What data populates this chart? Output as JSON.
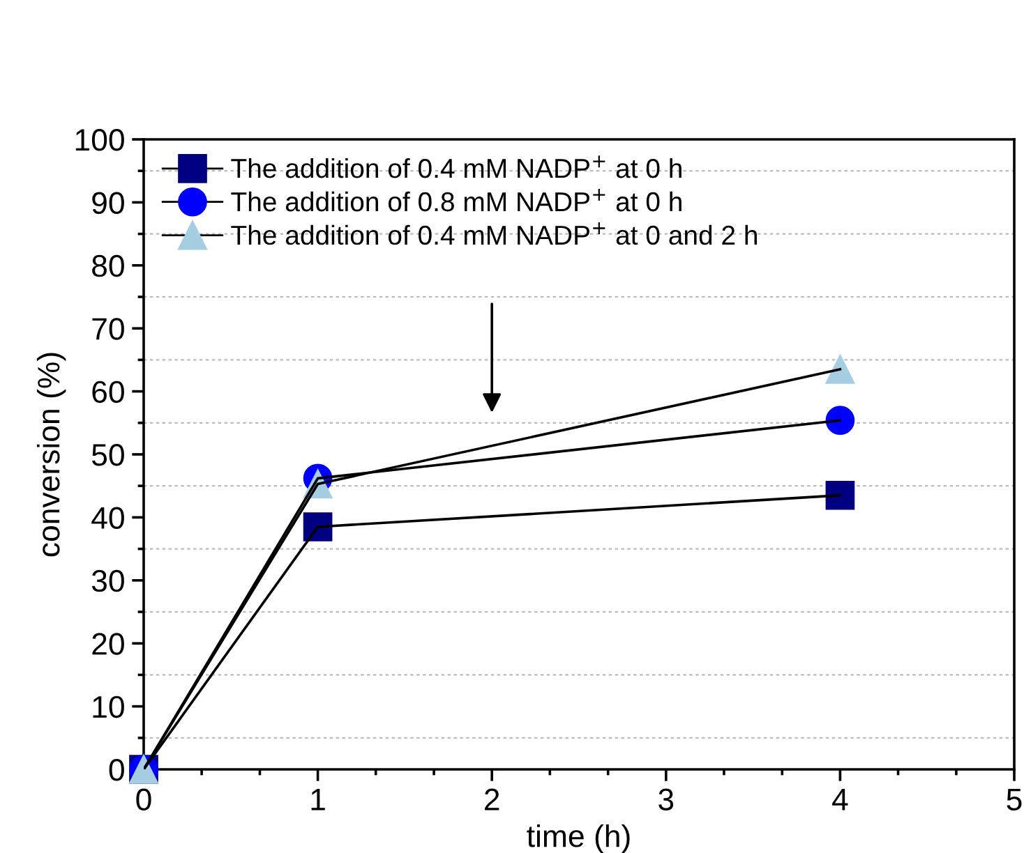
{
  "chart_data": {
    "type": "line",
    "xlabel": "time (h)",
    "ylabel": "conversion (%)",
    "x": [
      0,
      1,
      4
    ],
    "series": [
      {
        "name": "The addition of 0.4 mM NADP$^{+}$ at 0 h",
        "color": "#000080",
        "marker": "square",
        "values": [
          0,
          38.5,
          43.5
        ]
      },
      {
        "name": "The addition of 0.8 mM NADP$^{+}$ at 0 h",
        "color": "#0000ff",
        "marker": "circle",
        "values": [
          0,
          46.2,
          55.4
        ]
      },
      {
        "name": "The addition of 0.4 mM NADP$^{+}$ at 0 and 2 h",
        "color": "#a6cee3",
        "marker": "triangle",
        "values": [
          0,
          45.3,
          63.5
        ]
      }
    ],
    "xlim": [
      0,
      5
    ],
    "ylim": [
      0,
      100
    ],
    "xticks": [
      0,
      {
        "value": 0.333,
        "label": null
      },
      {
        "value": 0.667,
        "label": null
      },
      1,
      {
        "value": 1.333,
        "label": null
      },
      {
        "value": 1.667,
        "label": null
      },
      2,
      {
        "value": 2.333,
        "label": null
      },
      {
        "value": 2.667,
        "label": null
      },
      3,
      {
        "value": 3.333,
        "label": null
      },
      {
        "value": 3.667,
        "label": null
      },
      4,
      {
        "value": 4.333,
        "label": null
      },
      {
        "value": 4.667,
        "label": null
      },
      5
    ],
    "yticks": [
      0,
      {
        "value": 5,
        "label": null
      },
      10,
      {
        "value": 15,
        "label": null
      },
      20,
      {
        "value": 25,
        "label": null
      },
      30,
      {
        "value": 35,
        "label": null
      },
      40,
      {
        "value": 45,
        "label": null
      },
      50,
      {
        "value": 55,
        "label": null
      },
      60,
      {
        "value": 65,
        "label": null
      },
      70,
      {
        "value": 75,
        "label": null
      },
      80,
      {
        "value": 85,
        "label": null
      },
      90,
      {
        "value": 95,
        "label": null
      },
      100
    ],
    "grid": "y",
    "legend": "top left",
    "line_style": "solid"
  }
}
